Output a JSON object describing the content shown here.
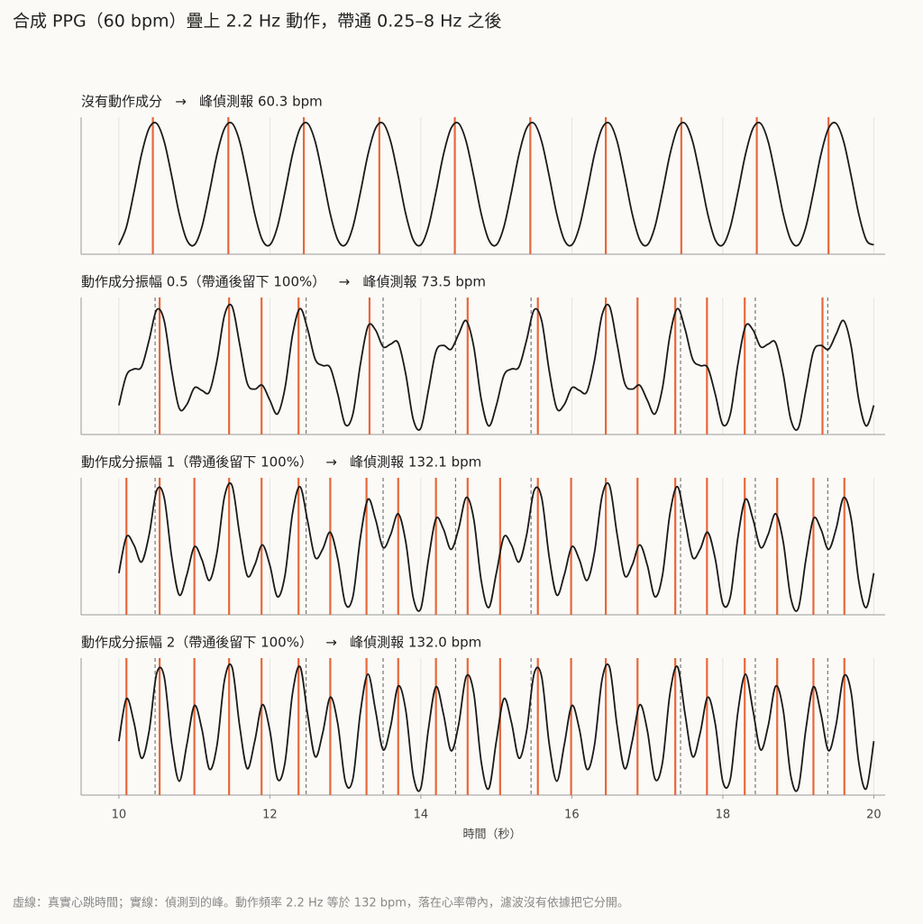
{
  "chart_data": {
    "type": "line",
    "title": "合成 PPG（60 bpm）疊上 2.2 Hz 動作，帶通 0.25–8 Hz 之後",
    "xlabel": "時間（秒）",
    "note": "虛線：真實心跳時間；實線：偵測到的峰。動作頻率 2.2 Hz 等於 132 bpm，落在心率帶內，濾波沒有依據把它分開。",
    "xlim": [
      9.5,
      20.15
    ],
    "xticks": [
      10,
      12,
      14,
      16,
      18,
      20
    ],
    "grid": true,
    "line_color": "#1a1a1a",
    "peak_color": "#e8683a",
    "beat_color": "#777777",
    "x": [
      10,
      10.1,
      10.2,
      10.3,
      10.4,
      10.5,
      10.6,
      10.7,
      10.8,
      10.9,
      11,
      11.1,
      11.2,
      11.3,
      11.4,
      11.5,
      11.6,
      11.7,
      11.8,
      11.9,
      12,
      12.1,
      12.2,
      12.3,
      12.4,
      12.5,
      12.6,
      12.7,
      12.8,
      12.9,
      13,
      13.1,
      13.2,
      13.3,
      13.4,
      13.5,
      13.6,
      13.7,
      13.8,
      13.9,
      14,
      14.1,
      14.2,
      14.3,
      14.4,
      14.5,
      14.6,
      14.7,
      14.8,
      14.9,
      15,
      15.1,
      15.2,
      15.3,
      15.4,
      15.5,
      15.6,
      15.7,
      15.8,
      15.9,
      16,
      16.1,
      16.2,
      16.3,
      16.4,
      16.5,
      16.6,
      16.7,
      16.8,
      16.9,
      17,
      17.1,
      17.2,
      17.3,
      17.4,
      17.5,
      17.6,
      17.7,
      17.8,
      17.9,
      18,
      18.1,
      18.2,
      18.3,
      18.4,
      18.5,
      18.6,
      18.7,
      18.8,
      18.9,
      19,
      19.1,
      19.2,
      19.3,
      19.4,
      19.5,
      19.6,
      19.7,
      19.8,
      19.9,
      20
    ],
    "true_beats": [
      10.48,
      11.46,
      12.48,
      13.5,
      14.46,
      15.46,
      16.45,
      17.44,
      18.43,
      19.39
    ],
    "panels": [
      {
        "title": "沒有動作成分   →   峰偵測報 60.3 bpm",
        "ylim": [
          -1.13,
          1.08
        ],
        "show_true_beats": false,
        "peaks": [
          10.45,
          11.45,
          12.45,
          13.45,
          14.45,
          15.45,
          16.45,
          17.45,
          18.45,
          19.4
        ],
        "values": [
          -0.98,
          -0.69,
          -0.13,
          0.48,
          0.9,
          0.98,
          0.69,
          0.13,
          -0.48,
          -0.9,
          -0.98,
          -0.69,
          -0.13,
          0.48,
          0.9,
          0.98,
          0.69,
          0.13,
          -0.48,
          -0.9,
          -0.98,
          -0.69,
          -0.13,
          0.48,
          0.9,
          0.98,
          0.69,
          0.13,
          -0.48,
          -0.9,
          -0.98,
          -0.69,
          -0.13,
          0.48,
          0.9,
          0.98,
          0.69,
          0.13,
          -0.48,
          -0.9,
          -0.98,
          -0.69,
          -0.13,
          0.48,
          0.9,
          0.98,
          0.69,
          0.13,
          -0.48,
          -0.9,
          -0.98,
          -0.69,
          -0.13,
          0.48,
          0.9,
          0.98,
          0.69,
          0.13,
          -0.48,
          -0.9,
          -0.98,
          -0.69,
          -0.13,
          0.48,
          0.9,
          0.98,
          0.69,
          0.13,
          -0.48,
          -0.9,
          -0.98,
          -0.69,
          -0.13,
          0.48,
          0.9,
          0.98,
          0.69,
          0.13,
          -0.48,
          -0.9,
          -0.98,
          -0.69,
          -0.13,
          0.48,
          0.9,
          0.98,
          0.69,
          0.13,
          -0.48,
          -0.9,
          -0.98,
          -0.69,
          -0.13,
          0.48,
          0.9,
          0.98,
          0.69,
          0.13,
          -0.48,
          -0.9,
          -0.98
        ]
      },
      {
        "title": "動作成分振幅 0.5（帶通後留下 100%）   →   峰偵測報 73.5 bpm",
        "ylim": [
          -1.57,
          1.63
        ],
        "show_true_beats": true,
        "peaks": [
          10.54,
          11.46,
          11.89,
          12.38,
          13.32,
          14.62,
          15.55,
          16.45,
          16.87,
          17.37,
          17.79,
          18.29,
          19.32
        ],
        "values": [
          -0.89,
          -0.19,
          -0.04,
          0.01,
          0.63,
          1.34,
          1.09,
          -0.08,
          -0.96,
          -0.87,
          -0.48,
          -0.54,
          -0.57,
          0.16,
          1.22,
          1.42,
          0.54,
          -0.37,
          -0.51,
          -0.42,
          -0.77,
          -1.09,
          -0.49,
          0.75,
          1.37,
          0.89,
          0.19,
          0.04,
          -0.01,
          -0.63,
          -1.34,
          -1.09,
          0.08,
          0.96,
          0.87,
          0.48,
          0.54,
          0.57,
          -0.16,
          -1.22,
          -1.42,
          -0.54,
          0.37,
          0.51,
          0.42,
          0.77,
          1.09,
          0.49,
          -0.75,
          -1.37,
          -0.89,
          -0.19,
          -0.04,
          0.01,
          0.63,
          1.34,
          1.09,
          -0.08,
          -0.96,
          -0.87,
          -0.48,
          -0.54,
          -0.57,
          0.16,
          1.22,
          1.42,
          0.54,
          -0.37,
          -0.51,
          -0.42,
          -0.77,
          -1.09,
          -0.49,
          0.75,
          1.37,
          0.89,
          0.19,
          0.04,
          -0.01,
          -0.63,
          -1.34,
          -1.09,
          0.08,
          0.96,
          0.87,
          0.48,
          0.54,
          0.57,
          -0.16,
          -1.22,
          -1.42,
          -0.54,
          0.37,
          0.51,
          0.42,
          0.77,
          1.09,
          0.49,
          -0.75,
          -1.37,
          -0.89
        ]
      },
      {
        "title": "動作成分振幅 1（帶通後留下 100%）   →   峰偵測報 132.1 bpm",
        "ylim": [
          -2.05,
          2.1
        ],
        "show_true_beats": true,
        "peaks": [
          10.1,
          10.54,
          11,
          11.46,
          11.89,
          12.38,
          12.8,
          13.28,
          13.7,
          14.2,
          14.62,
          15.05,
          15.55,
          15.99,
          16.45,
          16.87,
          17.37,
          17.79,
          18.29,
          18.72,
          19.2,
          19.61
        ],
        "values": [
          -0.79,
          0.31,
          0.06,
          -0.45,
          0.36,
          1.71,
          1.5,
          -0.3,
          -1.45,
          -0.84,
          0.01,
          -0.38,
          -1.01,
          -0.16,
          1.54,
          1.86,
          0.38,
          -0.86,
          -0.54,
          0.07,
          -0.55,
          -1.5,
          -0.86,
          1.02,
          1.83,
          0.79,
          -0.31,
          -0.06,
          0.45,
          -0.36,
          -1.71,
          -1.5,
          0.3,
          1.45,
          0.84,
          -0.01,
          0.38,
          1.01,
          0.16,
          -1.54,
          -1.86,
          -0.38,
          0.86,
          0.54,
          -0.07,
          0.55,
          1.5,
          0.86,
          -1.02,
          -1.83,
          -0.79,
          0.31,
          0.06,
          -0.45,
          0.36,
          1.71,
          1.5,
          -0.3,
          -1.45,
          -0.84,
          0.01,
          -0.38,
          -1.01,
          -0.16,
          1.54,
          1.86,
          0.38,
          -0.86,
          -0.54,
          0.07,
          -0.55,
          -1.5,
          -0.86,
          1.02,
          1.83,
          0.79,
          -0.31,
          -0.06,
          0.45,
          -0.36,
          -1.71,
          -1.5,
          0.3,
          1.45,
          0.84,
          -0.01,
          0.38,
          1.01,
          0.16,
          -1.54,
          -1.86,
          -0.38,
          0.86,
          0.54,
          -0.07,
          0.55,
          1.5,
          0.86,
          -1.02,
          -1.83,
          -0.79
        ]
      },
      {
        "title": "動作成分振幅 2（帶通後留下 100%）   →   峰偵測報 132.0 bpm",
        "ylim": [
          -3.05,
          3.15
        ],
        "show_true_beats": true,
        "peaks": [
          10.1,
          10.54,
          11,
          11.46,
          11.89,
          12.38,
          12.8,
          13.28,
          13.7,
          14.2,
          14.62,
          15.05,
          15.55,
          15.99,
          16.45,
          16.87,
          17.37,
          17.79,
          18.29,
          18.72,
          19.2,
          19.61
        ],
        "values": [
          -0.61,
          1.31,
          0.24,
          -1.38,
          -0.17,
          2.44,
          2.31,
          -0.72,
          -2.42,
          -0.77,
          1,
          -0.07,
          -1.88,
          -0.79,
          2.17,
          2.73,
          0.07,
          -1.85,
          -0.61,
          1.04,
          -0.13,
          -2.31,
          -1.59,
          1.55,
          2.76,
          0.61,
          -1.31,
          -0.24,
          1.38,
          0.17,
          -2.44,
          -2.31,
          0.72,
          2.42,
          0.77,
          -1,
          0.07,
          1.88,
          0.79,
          -2.17,
          -2.73,
          -0.07,
          1.85,
          0.61,
          -1.04,
          0.13,
          2.31,
          1.59,
          -1.55,
          -2.76,
          -0.61,
          1.31,
          0.24,
          -1.38,
          -0.17,
          2.44,
          2.31,
          -0.72,
          -2.42,
          -0.77,
          1,
          -0.07,
          -1.88,
          -0.79,
          2.17,
          2.73,
          0.07,
          -1.85,
          -0.61,
          1.04,
          -0.13,
          -2.31,
          -1.59,
          1.55,
          2.76,
          0.61,
          -1.31,
          -0.24,
          1.38,
          0.17,
          -2.44,
          -2.31,
          0.72,
          2.42,
          0.77,
          -1,
          0.07,
          1.88,
          0.79,
          -2.17,
          -2.73,
          -0.07,
          1.85,
          0.61,
          -1.04,
          0.13,
          2.31,
          1.59,
          -1.55,
          -2.76,
          -0.61
        ]
      }
    ]
  }
}
